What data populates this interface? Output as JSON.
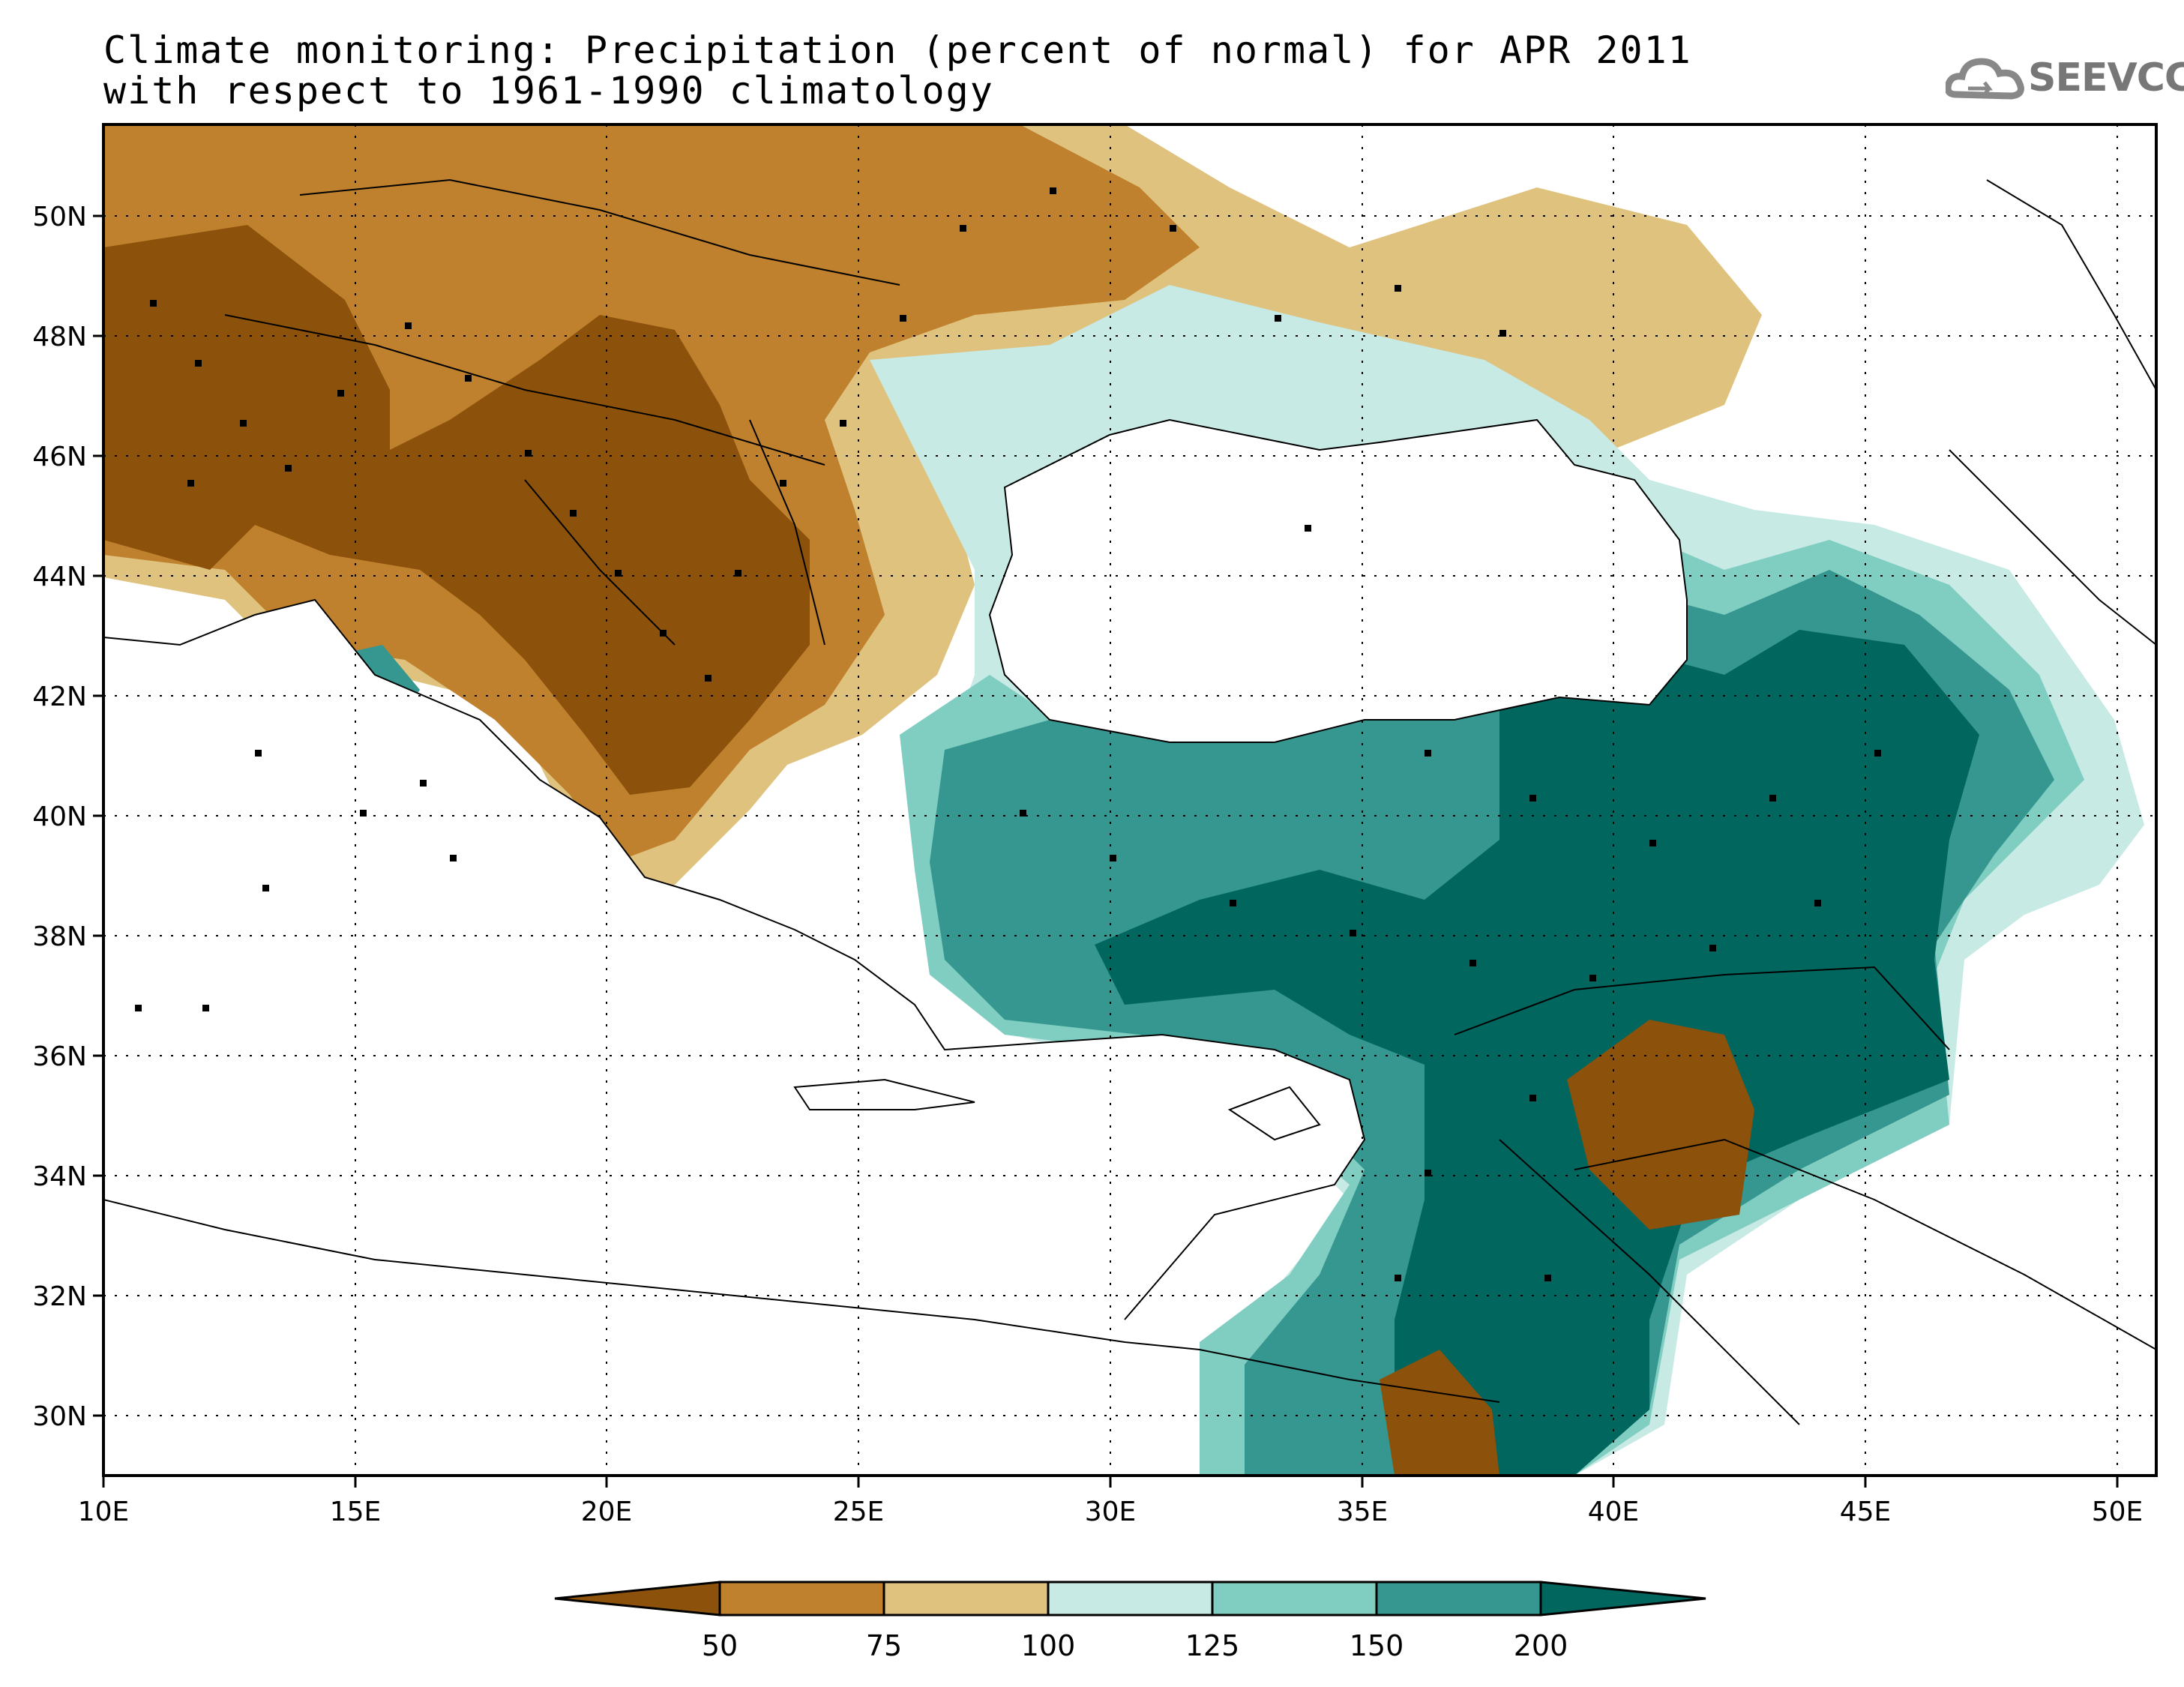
{
  "title": {
    "line1": "Climate monitoring: Precipitation (percent of normal) for APR 2011",
    "line2": "with respect to 1961-1990 climatology"
  },
  "logo": {
    "text": "SEEVCCC",
    "icon": "cloud-icon"
  },
  "map": {
    "lon_range": [
      10,
      51
    ],
    "lat_range": [
      29,
      51.5
    ],
    "lon_ticks": [
      "10E",
      "15E",
      "20E",
      "25E",
      "30E",
      "35E",
      "40E",
      "45E",
      "50E"
    ],
    "lat_ticks": [
      "30N",
      "32N",
      "34N",
      "36N",
      "38N",
      "40N",
      "42N",
      "44N",
      "46N",
      "48N",
      "50N"
    ],
    "grid": "dotted"
  },
  "colorbar": {
    "labels": [
      "50",
      "75",
      "100",
      "125",
      "150",
      "200"
    ],
    "colors": [
      "#8c510a",
      "#bf812d",
      "#dfc27d",
      "#c7eae5",
      "#80cdc1",
      "#35978f",
      "#01665e"
    ]
  }
}
